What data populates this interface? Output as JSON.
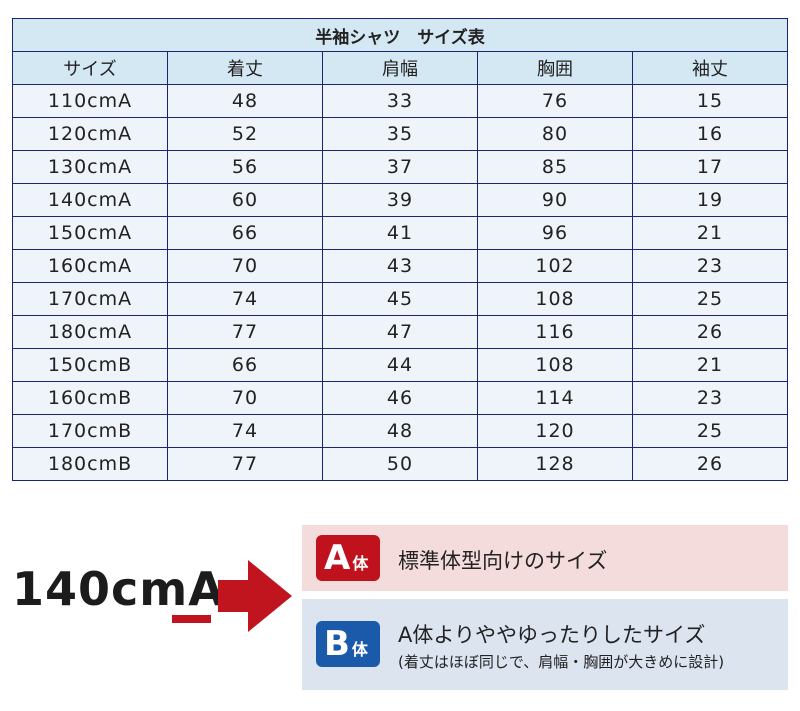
{
  "table": {
    "title": "半袖シャツ　サイズ表",
    "headers": [
      "サイズ",
      "着丈",
      "肩幅",
      "胸囲",
      "袖丈"
    ],
    "rows": [
      [
        "110cmA",
        "48",
        "33",
        "76",
        "15"
      ],
      [
        "120cmA",
        "52",
        "35",
        "80",
        "16"
      ],
      [
        "130cmA",
        "56",
        "37",
        "85",
        "17"
      ],
      [
        "140cmA",
        "60",
        "39",
        "90",
        "19"
      ],
      [
        "150cmA",
        "66",
        "41",
        "96",
        "21"
      ],
      [
        "160cmA",
        "70",
        "43",
        "102",
        "23"
      ],
      [
        "170cmA",
        "74",
        "45",
        "108",
        "25"
      ],
      [
        "180cmA",
        "77",
        "47",
        "116",
        "26"
      ],
      [
        "150cmB",
        "66",
        "44",
        "108",
        "21"
      ],
      [
        "160cmB",
        "70",
        "46",
        "114",
        "23"
      ],
      [
        "170cmB",
        "74",
        "48",
        "120",
        "25"
      ],
      [
        "180cmB",
        "77",
        "50",
        "128",
        "26"
      ]
    ]
  },
  "legend": {
    "example_prefix": "140cm",
    "example_letter": "A",
    "a_letter": "A",
    "a_suffix": "体",
    "a_text": "標準体型向けのサイズ",
    "b_letter": "B",
    "b_suffix": "体",
    "b_text": "A体よりややゆったりしたサイズ",
    "b_note": "(着丈はほぼ同じで、肩幅・胸囲が大きめに設計)"
  },
  "colors": {
    "border": "#1a2470",
    "header_bg": "#d4e8f4",
    "a_color": "#c0121c",
    "b_color": "#1b5aab"
  }
}
